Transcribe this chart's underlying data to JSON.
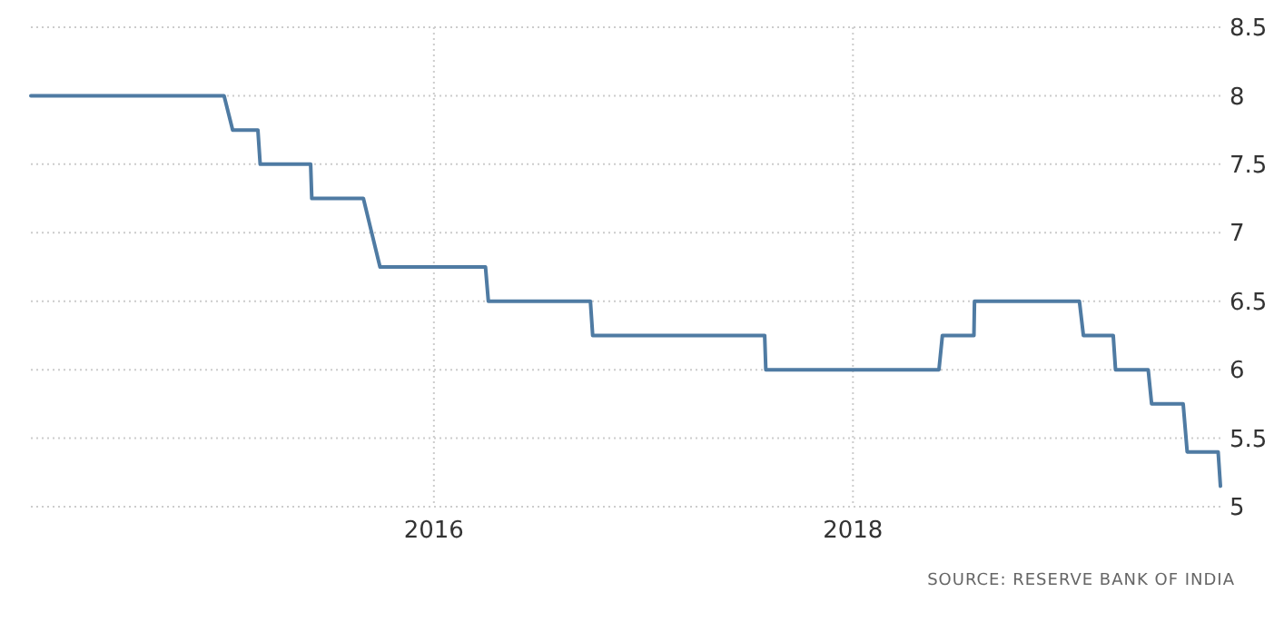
{
  "chart_data": {
    "type": "line",
    "x": [
      "2014-01-28",
      "2014-12-31",
      "2015-01-15",
      "2015-02-28",
      "2015-03-04",
      "2015-05-31",
      "2015-06-02",
      "2015-08-31",
      "2015-09-29",
      "2016-03-31",
      "2016-04-05",
      "2016-09-30",
      "2016-10-04",
      "2017-07-31",
      "2017-08-02",
      "2018-05-31",
      "2018-06-06",
      "2018-07-31",
      "2018-08-01",
      "2019-01-31",
      "2019-02-07",
      "2019-03-31",
      "2019-04-04",
      "2019-05-31",
      "2019-06-06",
      "2019-07-31",
      "2019-08-07",
      "2019-09-30",
      "2019-10-04"
    ],
    "series": [
      {
        "color": "#4f7ba3",
        "values": [
          8,
          8,
          7.75,
          7.75,
          7.5,
          7.5,
          7.25,
          7.25,
          6.75,
          6.75,
          6.5,
          6.5,
          6.25,
          6.25,
          6,
          6,
          6.25,
          6.25,
          6.5,
          6.5,
          6.25,
          6.25,
          6,
          6,
          5.75,
          5.75,
          5.4,
          5.4,
          5.15
        ]
      }
    ],
    "xlim": [
      "2014-01-28",
      "2019-10-04"
    ],
    "xticks": [
      "2016",
      "2018"
    ],
    "ylim": [
      5,
      8.5
    ],
    "yticks": [
      5,
      5.5,
      6,
      6.5,
      7,
      7.5,
      8,
      8.5
    ],
    "grid": true,
    "annotations": [
      "SOURCE: RESERVE BANK OF INDIA"
    ]
  }
}
